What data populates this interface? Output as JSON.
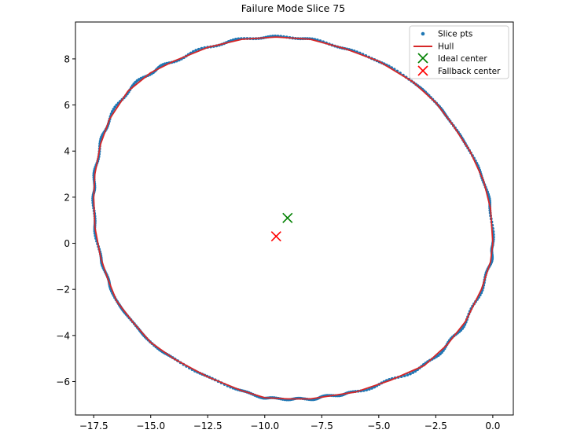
{
  "chart_data": {
    "type": "scatter",
    "title": "Failure Mode Slice 75",
    "xlabel": "",
    "ylabel": "",
    "xlim": [
      -18.3,
      0.9
    ],
    "ylim": [
      -7.45,
      9.6
    ],
    "xticks": [
      -17.5,
      -15.0,
      -12.5,
      -10.0,
      -7.5,
      -5.0,
      -2.5,
      0.0
    ],
    "xtick_labels": [
      "−17.5",
      "−15.0",
      "−12.5",
      "−10.0",
      "−7.5",
      "−5.0",
      "−2.5",
      "0.0"
    ],
    "yticks": [
      -6,
      -4,
      -2,
      0,
      2,
      4,
      6,
      8
    ],
    "ytick_labels": [
      "−6",
      "−4",
      "−2",
      "0",
      "2",
      "4",
      "6",
      "8"
    ],
    "grid": false,
    "legend_position": "top-right",
    "legend": [
      {
        "label": "Slice pts",
        "marker": "dot",
        "color": "#1f77b4"
      },
      {
        "label": "Hull",
        "marker": "line",
        "color": "#d62728"
      },
      {
        "label": "Ideal center",
        "marker": "x",
        "color": "#008000"
      },
      {
        "label": "Fallback center",
        "marker": "x",
        "color": "#ff0000"
      }
    ],
    "hull": [
      [
        0.0,
        0.0
      ],
      [
        -0.1,
        1.5
      ],
      [
        -0.4,
        2.7
      ],
      [
        -1.0,
        4.0
      ],
      [
        -1.8,
        5.2
      ],
      [
        -2.5,
        6.1
      ],
      [
        -3.5,
        7.0
      ],
      [
        -5.0,
        7.9
      ],
      [
        -6.5,
        8.45
      ],
      [
        -8.0,
        8.85
      ],
      [
        -9.5,
        8.95
      ],
      [
        -11.0,
        8.85
      ],
      [
        -12.5,
        8.5
      ],
      [
        -14.0,
        7.9
      ],
      [
        -15.0,
        7.4
      ],
      [
        -16.0,
        6.6
      ],
      [
        -16.8,
        5.4
      ],
      [
        -17.2,
        4.3
      ],
      [
        -17.45,
        3.0
      ],
      [
        -17.5,
        2.0
      ],
      [
        -17.45,
        0.7
      ],
      [
        -17.2,
        -0.6
      ],
      [
        -16.9,
        -1.5
      ],
      [
        -16.5,
        -2.5
      ],
      [
        -15.8,
        -3.4
      ],
      [
        -15.0,
        -4.3
      ],
      [
        -14.0,
        -5.0
      ],
      [
        -12.5,
        -5.8
      ],
      [
        -11.0,
        -6.4
      ],
      [
        -10.0,
        -6.7
      ],
      [
        -9.0,
        -6.75
      ],
      [
        -8.0,
        -6.75
      ],
      [
        -7.0,
        -6.6
      ],
      [
        -6.0,
        -6.45
      ],
      [
        -4.5,
        -5.95
      ],
      [
        -3.0,
        -5.3
      ],
      [
        -2.0,
        -4.4
      ],
      [
        -1.2,
        -3.4
      ],
      [
        -0.5,
        -2.0
      ],
      [
        -0.1,
        -0.8
      ]
    ],
    "slice_points_count": 520,
    "ideal_center": [
      -9.0,
      1.1
    ],
    "fallback_center": [
      -9.5,
      0.3
    ]
  },
  "colors": {
    "points": "#1f77b4",
    "hull": "#d62728",
    "ideal": "#008000",
    "fallback": "#ff0000"
  }
}
